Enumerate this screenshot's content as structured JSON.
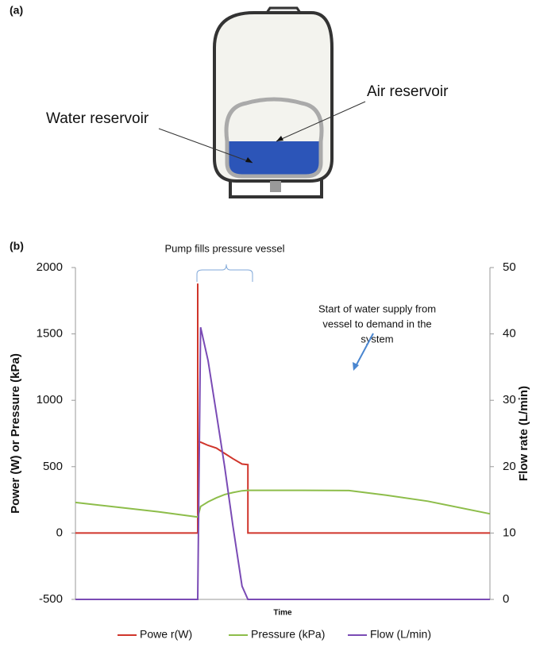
{
  "panels": {
    "a": "(a)",
    "b": "(b)"
  },
  "diagram": {
    "water_label": "Water reservoir",
    "air_label": "Air reservoir"
  },
  "chart_data": {
    "type": "line",
    "ylabel": "Power (W) or Pressure (kPa)",
    "y2label": "Flow rate (L/min)",
    "xlabel": "Time",
    "annotations": {
      "pump": "Pump fills pressure vessel",
      "supply": [
        "Start of water supply from",
        "vessel to demand in the",
        "system"
      ]
    },
    "xlim": [
      0,
      100
    ],
    "x": [
      0,
      10,
      20,
      29.5,
      29.5,
      29.5,
      30.2,
      32,
      34,
      36,
      38,
      40.2,
      41.6,
      41.6,
      43,
      55,
      66,
      75,
      85,
      100
    ],
    "ylim": [
      -500,
      2000
    ],
    "yticks": [
      -500,
      0,
      500,
      1000,
      1500,
      2000
    ],
    "y2lim": [
      0,
      50
    ],
    "y2ticks": [
      0,
      10,
      20,
      30,
      40,
      50
    ],
    "legend": "bottom",
    "series": [
      {
        "name": "Powe r(W)",
        "color": "#d0352b",
        "values": [
          0,
          0,
          0,
          0,
          1880,
          690,
          685,
          660,
          640,
          600,
          560,
          520,
          515,
          0,
          0,
          0,
          0,
          0,
          0,
          0
        ]
      },
      {
        "name": "Pressure (kPa)",
        "color": "#8dbd4a",
        "values": [
          230,
          195,
          160,
          120,
          120,
          120,
          200,
          235,
          265,
          290,
          305,
          318,
          322,
          322,
          322,
          322,
          320,
          285,
          240,
          145
        ]
      },
      {
        "name": "Flow (L/min)",
        "color": "#7a4bb5",
        "axis": "y2",
        "values": [
          0,
          0,
          0,
          0,
          0,
          0,
          41,
          36,
          28,
          20,
          11,
          2,
          0,
          0,
          0,
          0,
          0,
          0,
          0,
          0
        ]
      }
    ]
  }
}
